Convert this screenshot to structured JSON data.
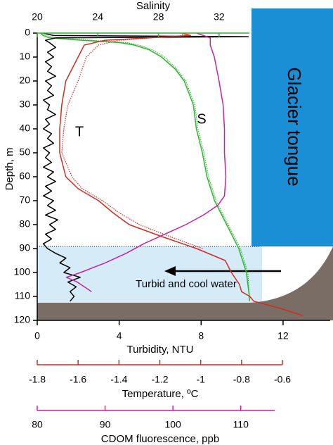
{
  "chart_data": {
    "type": "line",
    "ylabel": "Depth, m",
    "ylim": [
      0,
      120
    ],
    "yticks": [
      0,
      10,
      20,
      30,
      40,
      50,
      60,
      70,
      80,
      90,
      100,
      110,
      120
    ],
    "y_inverted": true,
    "axes": [
      {
        "label": "Salinity",
        "color": "#2fb52f",
        "lim": [
          20,
          34
        ],
        "ticks": [
          20,
          24,
          28,
          32
        ],
        "series": [
          {
            "color": "#2fb52f",
            "dashed": false,
            "depth": [
              0,
              1,
              2,
              3,
              4,
              5,
              7,
              10,
              15,
              20,
              30,
              40,
              50,
              60,
              70,
              80,
              90,
              100,
              110,
              112
            ],
            "values": [
              20.2,
              20.4,
              20.8,
              23,
              25.5,
              26.4,
              27.4,
              28.2,
              29.1,
              29.7,
              30.3,
              30.5,
              30.9,
              31.2,
              31.7,
              32.5,
              33.3,
              33.8,
              34.0,
              34.0
            ]
          },
          {
            "color": "#2fb52f",
            "dashed": true,
            "depth": [
              0,
              1,
              2,
              3,
              4,
              5,
              7,
              10,
              15,
              20,
              30,
              40,
              50,
              60,
              70,
              80,
              90,
              100,
              110,
              112
            ],
            "values": [
              20.3,
              20.6,
              21.2,
              23.6,
              25.9,
              26.7,
              27.6,
              28.4,
              29.2,
              29.8,
              30.4,
              30.6,
              31.0,
              31.3,
              31.8,
              32.6,
              33.4,
              33.9,
              34.0,
              34.0
            ]
          }
        ]
      },
      {
        "label": "Turbidity, NTU",
        "color": "#000000",
        "lim": [
          0,
          14.3
        ],
        "ticks": [
          0,
          4,
          8,
          12
        ],
        "series": [
          {
            "color": "#000000",
            "dashed": false,
            "depth": [
              0,
              1,
              1.5,
              2,
              3,
              4,
              6,
              8,
              10,
              12,
              14,
              16,
              18,
              20,
              22,
              24,
              26,
              28,
              30,
              32,
              34,
              36,
              38,
              40,
              42,
              44,
              46,
              48,
              50,
              52,
              54,
              56,
              58,
              60,
              62,
              64,
              66,
              68,
              70,
              72,
              74,
              76,
              78,
              80,
              82,
              84,
              86,
              88,
              90,
              92,
              94,
              96,
              98,
              100,
              102,
              104,
              106,
              108,
              110,
              112
            ],
            "values": [
              0.3,
              0.8,
              10.3,
              0.9,
              0.4,
              0.6,
              0.9,
              0.5,
              0.8,
              0.4,
              0.7,
              0.5,
              0.9,
              0.4,
              0.7,
              0.5,
              0.8,
              0.3,
              0.6,
              0.5,
              0.9,
              0.4,
              0.6,
              0.3,
              0.7,
              0.5,
              0.8,
              0.3,
              0.6,
              0.4,
              0.7,
              0.3,
              0.8,
              0.5,
              0.9,
              0.4,
              0.7,
              0.3,
              0.8,
              0.5,
              0.9,
              0.4,
              1.0,
              0.6,
              0.9,
              0.4,
              0.7,
              0.3,
              0.5,
              0.9,
              1.4,
              1.1,
              1.6,
              1.3,
              2.1,
              1.5,
              1.9,
              1.6,
              1.8,
              1.6
            ]
          }
        ]
      },
      {
        "label": "Temperature, ºC",
        "color": "#d42a20",
        "lim": [
          -1.8,
          -0.6
        ],
        "ticks": [
          -1.8,
          -1.6,
          -1.4,
          -1.2,
          -1,
          -0.8,
          -0.6
        ],
        "series": [
          {
            "color": "#d42a20",
            "dashed": false,
            "depth": [
              0,
              1,
              3,
              5,
              10,
              20,
              30,
              40,
              50,
              60,
              65,
              70,
              75,
              80,
              85,
              90,
              95,
              100,
              105,
              108,
              110,
              112,
              115,
              118
            ],
            "values": [
              -1.09,
              -1.05,
              -1.47,
              -1.57,
              -1.6,
              -1.66,
              -1.68,
              -1.69,
              -1.69,
              -1.66,
              -1.6,
              -1.5,
              -1.43,
              -1.35,
              -1.19,
              -1.02,
              -0.88,
              -0.85,
              -0.81,
              -0.8,
              -0.76,
              -0.74,
              -0.61,
              -0.5
            ]
          },
          {
            "color": "#d42a20",
            "dashed": true,
            "depth": [
              0,
              1,
              3,
              5,
              10,
              20,
              30,
              40,
              50,
              60,
              65,
              70,
              75,
              80,
              85,
              90
            ],
            "values": [
              -1.1,
              -1.08,
              -1.4,
              -1.5,
              -1.56,
              -1.6,
              -1.65,
              -1.67,
              -1.68,
              -1.63,
              -1.58,
              -1.48,
              -1.4,
              -1.3,
              -1.15,
              -0.99
            ]
          }
        ]
      },
      {
        "label": "CDOM  fluorescence, ppb",
        "color": "#c4239e",
        "lim": [
          80,
          115
        ],
        "ticks": [
          80,
          90,
          100,
          110
        ],
        "series": [
          {
            "color": "#c4239e",
            "dashed": false,
            "depth": [
              0,
              2,
              5,
              10,
              20,
              30,
              40,
              50,
              60,
              68,
              72,
              76,
              80,
              84,
              88,
              92,
              96,
              100,
              102,
              104,
              108
            ],
            "values": [
              103.5,
              105.5,
              105.5,
              106.1,
              106.8,
              107.4,
              107.6,
              107.6,
              107.8,
              107.6,
              106.6,
              104.5,
              101.9,
              98.8,
              95.7,
              93.1,
              90.0,
              86.4,
              84.3,
              85.9,
              88.0
            ]
          }
        ]
      }
    ],
    "annotations": [
      {
        "text": "T",
        "color": "#d42a20"
      },
      {
        "text": "S",
        "color": "#2fb52f"
      },
      {
        "text": "Glacier tongue",
        "color": "#ffffff"
      },
      {
        "text": "Turbid and cool water",
        "color": "#000000"
      }
    ]
  }
}
